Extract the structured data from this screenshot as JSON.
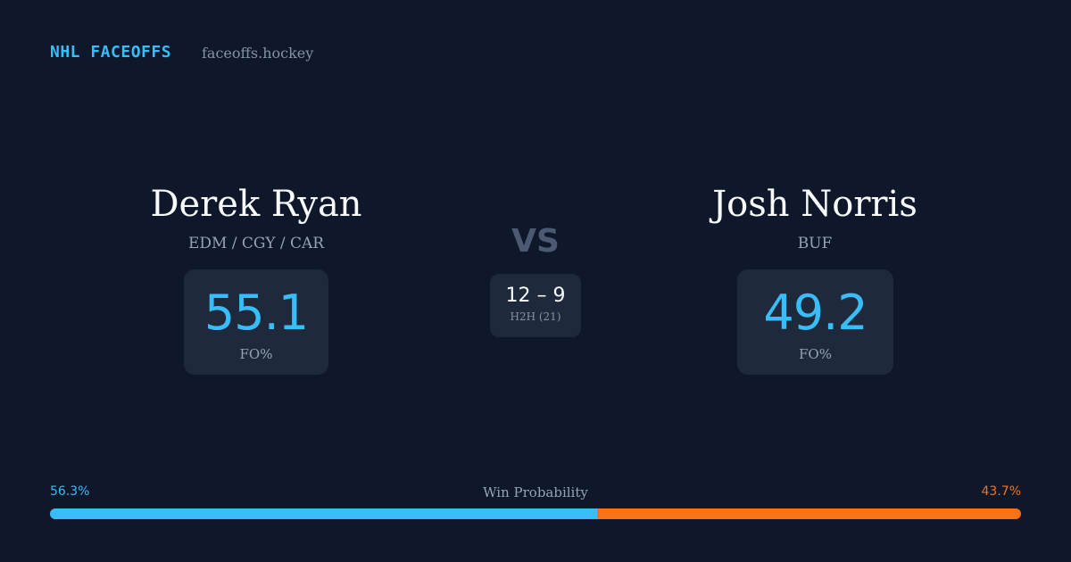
{
  "header": {
    "brand": "NHL FACEOFFS",
    "site": "faceoffs.hockey"
  },
  "players": [
    {
      "name": "Derek Ryan",
      "teams": "EDM / CGY / CAR",
      "fo_pct": 55.1,
      "fo_label": "FO%"
    },
    {
      "name": "Josh Norris",
      "teams": "BUF",
      "fo_pct": 49.2,
      "fo_label": "FO%"
    }
  ],
  "vs": "VS",
  "h2h": {
    "record": "12 – 9",
    "label": "H2H (21)"
  },
  "win_probability": {
    "title": "Win Probability",
    "values": [
      56.3,
      43.7
    ],
    "value_labels": [
      "56.3%",
      "43.7%"
    ],
    "colors": [
      "#38bdf8",
      "#f97316"
    ]
  }
}
